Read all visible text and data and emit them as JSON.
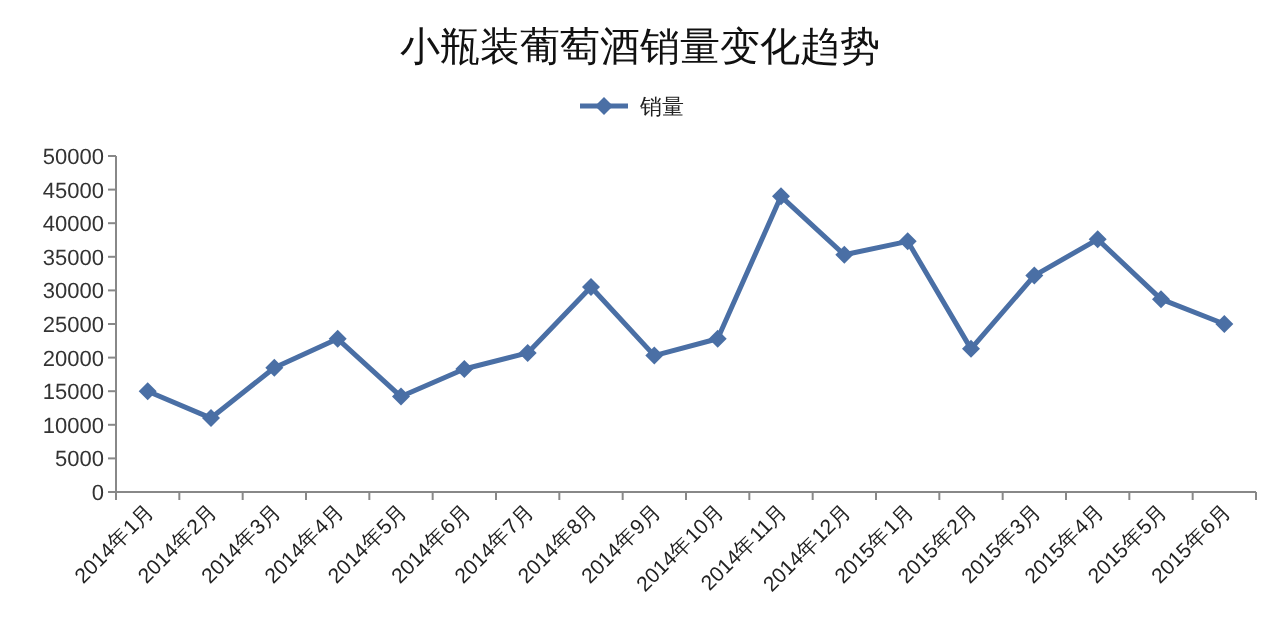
{
  "chart_data": {
    "type": "line",
    "title": "小瓶装葡萄酒销量变化趋势",
    "categories": [
      "2014年1月",
      "2014年2月",
      "2014年3月",
      "2014年4月",
      "2014年5月",
      "2014年6月",
      "2014年7月",
      "2014年8月",
      "2014年9月",
      "2014年10月",
      "2014年11月",
      "2014年12月",
      "2015年1月",
      "2015年2月",
      "2015年3月",
      "2015年4月",
      "2015年5月",
      "2015年6月"
    ],
    "series": [
      {
        "name": "销量",
        "color": "#4a6fa5",
        "values": [
          15000,
          11000,
          18500,
          22800,
          14200,
          18300,
          20700,
          30500,
          20300,
          22800,
          44000,
          35300,
          37300,
          21300,
          32200,
          37600,
          28700,
          25000
        ]
      }
    ],
    "ylim": [
      0,
      50000
    ],
    "yticks": [
      0,
      5000,
      10000,
      15000,
      20000,
      25000,
      30000,
      35000,
      40000,
      45000,
      50000
    ],
    "marker": "diamond",
    "legend": "top",
    "grid": false
  }
}
